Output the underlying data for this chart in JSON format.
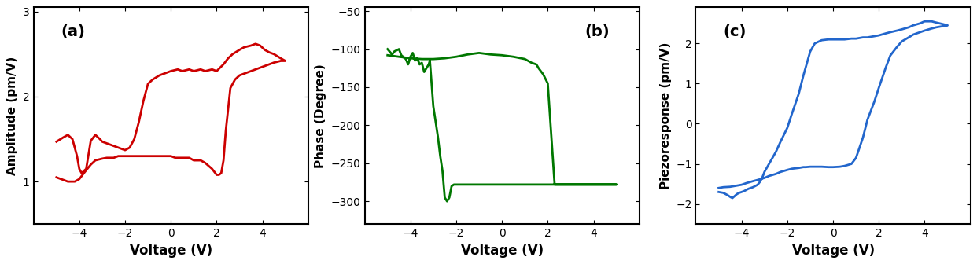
{
  "fig_width": 12.42,
  "fig_height": 3.36,
  "dpi": 100,
  "panel_labels": [
    "(a)",
    "(b)",
    "(c)"
  ],
  "colors": [
    "#cc0000",
    "#007700",
    "#2266cc"
  ],
  "xlim": [
    -6,
    6
  ],
  "xticks": [
    -4,
    -2,
    0,
    2,
    4
  ],
  "xlabel": "Voltage (V)",
  "panels": {
    "a": {
      "ylabel": "Amplitude (pm/V)",
      "ylim": [
        0.5,
        3.05
      ],
      "yticks": [
        1,
        2,
        3
      ]
    },
    "b": {
      "ylabel": "Phase (Degree)",
      "ylim": [
        -330,
        -45
      ],
      "yticks": [
        -300,
        -250,
        -200,
        -150,
        -100,
        -50
      ]
    },
    "c": {
      "ylabel": "Piezoresponse (pm/V)",
      "ylim": [
        -2.5,
        2.9
      ],
      "yticks": [
        -2,
        -1,
        0,
        1,
        2
      ]
    }
  }
}
